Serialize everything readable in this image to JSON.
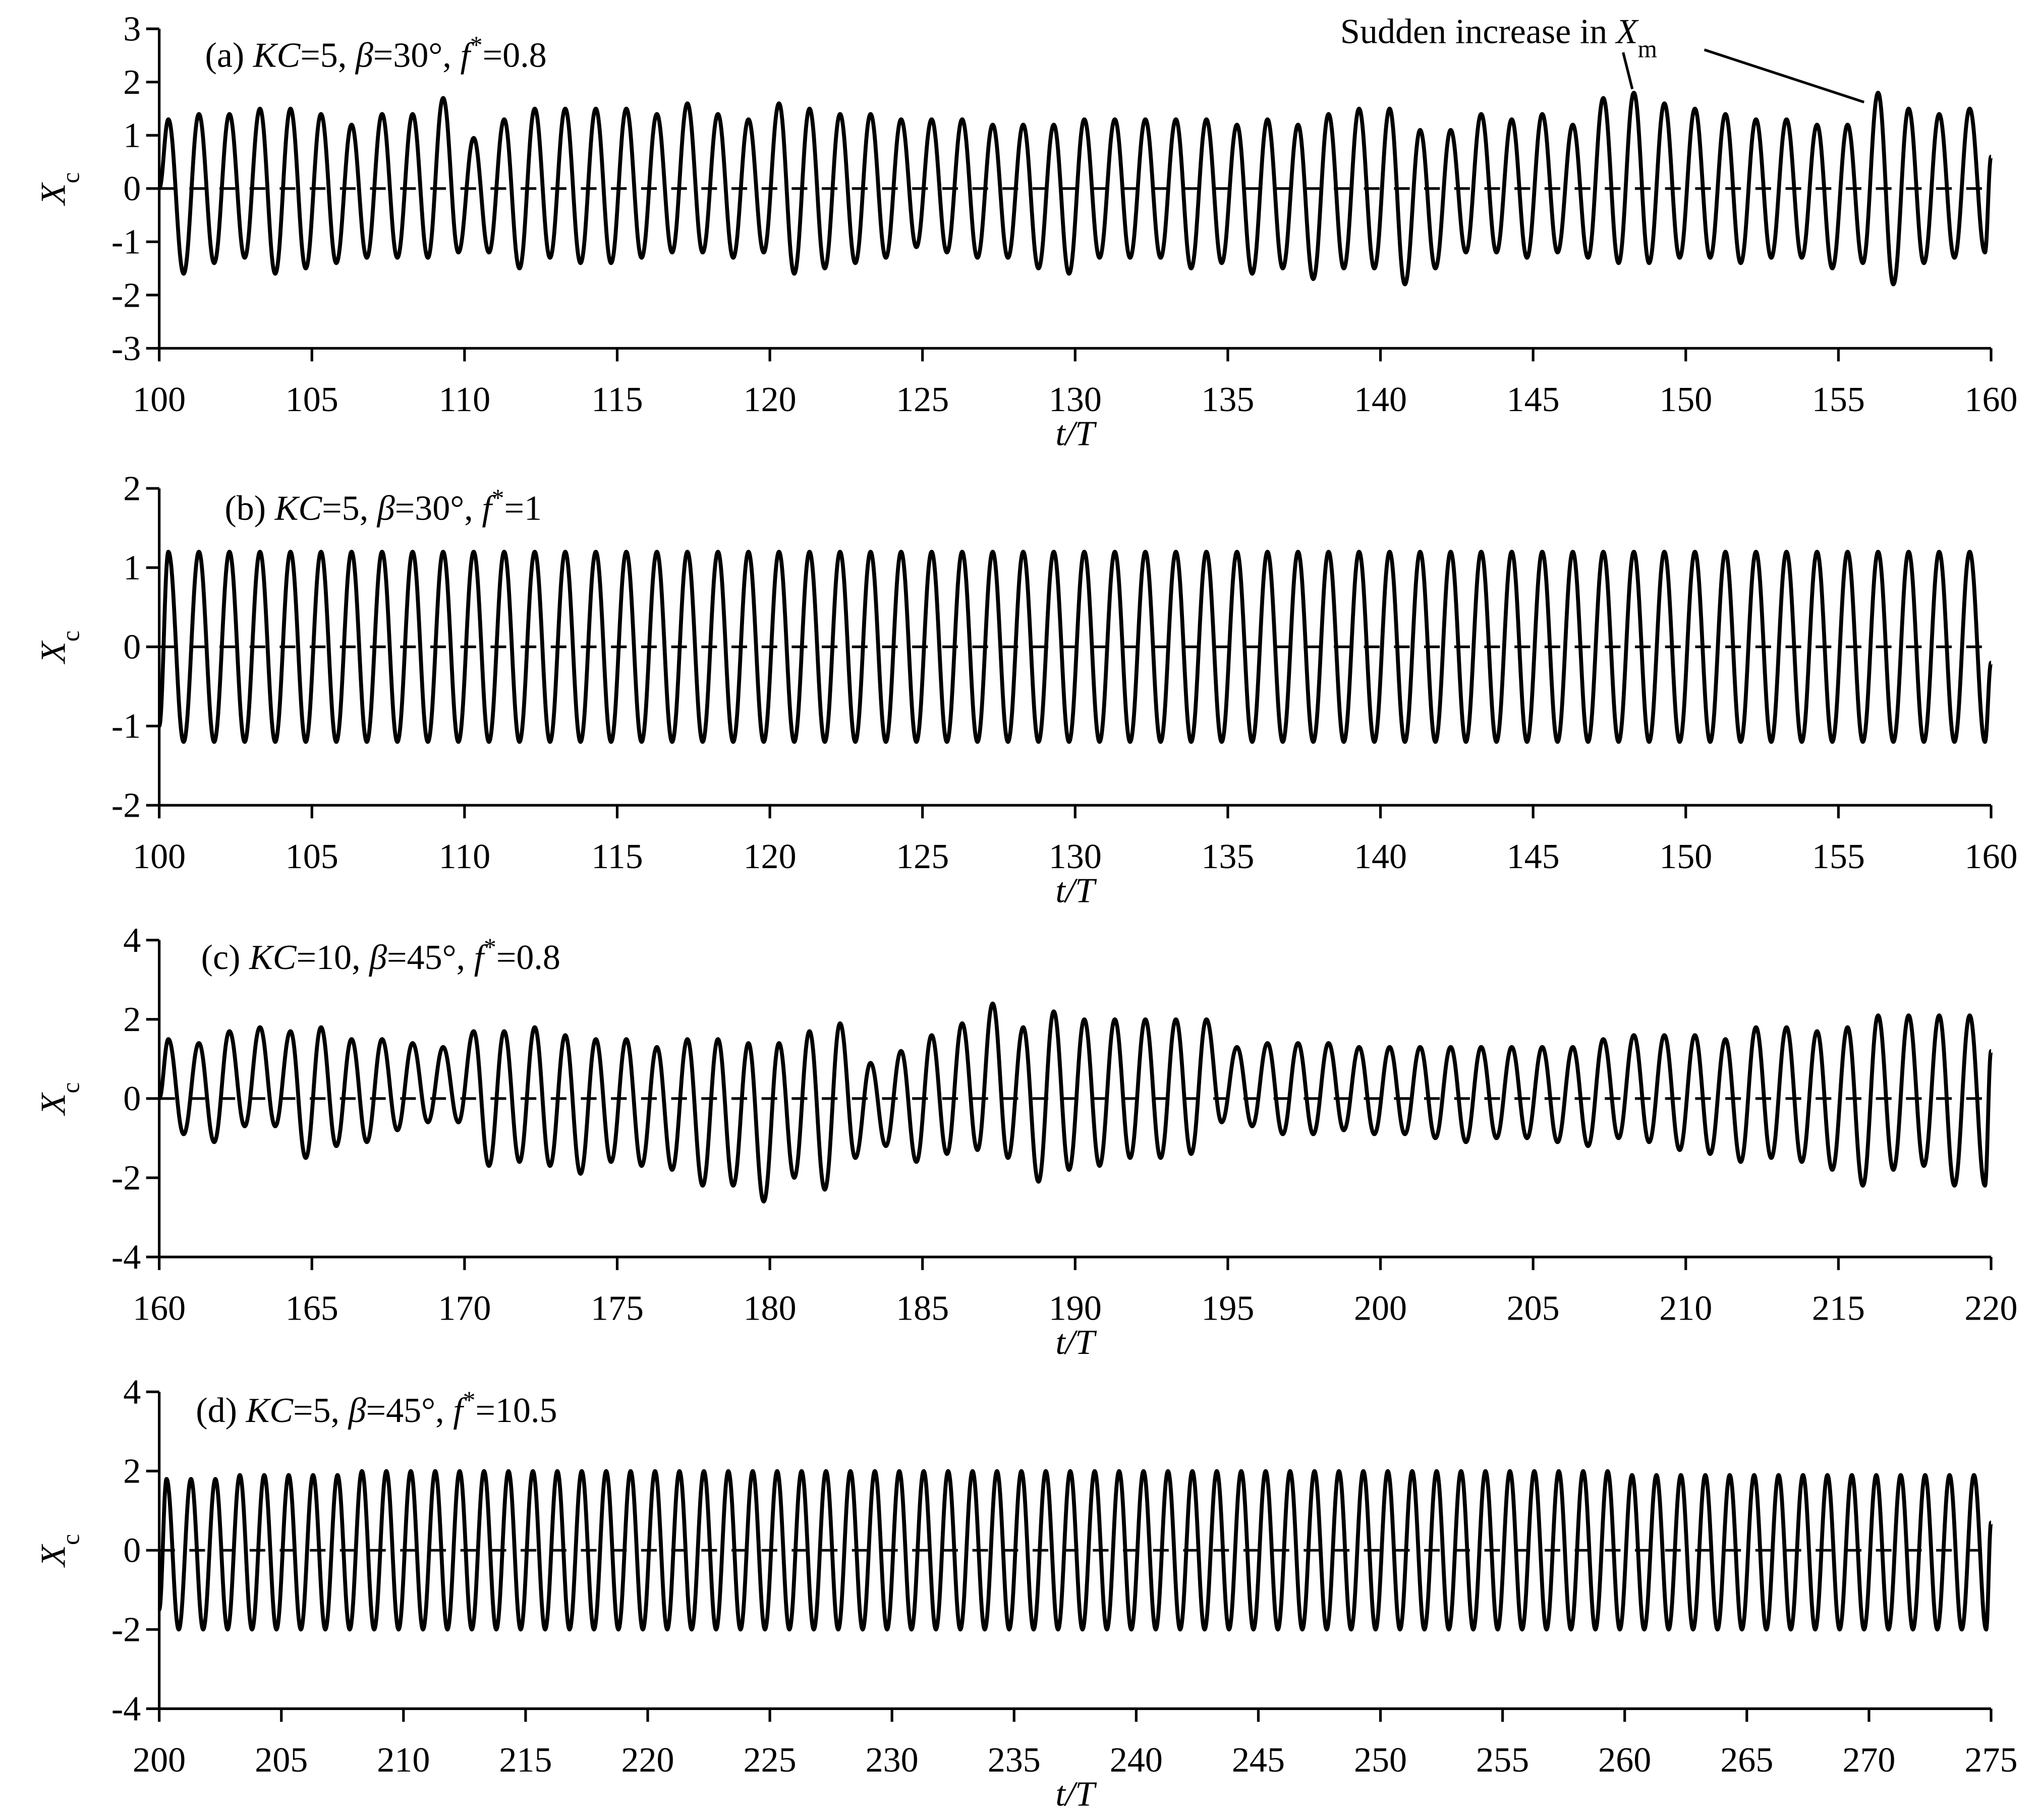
{
  "chart_data": [
    {
      "type": "line",
      "title": [
        "(a) ",
        "KC",
        "=5, ",
        "β",
        "=30°, ",
        "f",
        "*",
        "=0.8"
      ],
      "annotation": [
        "Sudden increase in ",
        "X",
        "m"
      ],
      "ylabel": [
        "X",
        "c"
      ],
      "xlabel": "t/T",
      "x": [
        100,
        100.3,
        100.8,
        101.3,
        101.8,
        102.3,
        102.8,
        103.3,
        103.8,
        104.3,
        104.8,
        105.3,
        105.8,
        106.3,
        106.8,
        107.3,
        107.8,
        108.3,
        108.8,
        109.3,
        109.8,
        110.3,
        110.8,
        111.3,
        111.8,
        112.3,
        112.8,
        113.3,
        113.8,
        114.3,
        114.8,
        115.3,
        115.8,
        116.3,
        116.8,
        117.3,
        117.8,
        118.3,
        118.8,
        119.3,
        119.8,
        120.3,
        120.8,
        121.3,
        121.8,
        122.3,
        122.8,
        123.3,
        123.8,
        124.3,
        124.8,
        125.3,
        125.8,
        126.3,
        126.8,
        127.3,
        127.8,
        128.3,
        128.8,
        129.3,
        129.8,
        130.3,
        130.8,
        131.3,
        131.8,
        132.3,
        132.8,
        133.3,
        133.8,
        134.3,
        134.8,
        135.3,
        135.8,
        136.3,
        136.8,
        137.3,
        137.8,
        138.3,
        138.8,
        139.3,
        139.8,
        140.3,
        140.8,
        141.3,
        141.8,
        142.3,
        142.8,
        143.3,
        143.8,
        144.3,
        144.8,
        145.3,
        145.8,
        146.3,
        146.8,
        147.3,
        147.8,
        148.3,
        148.8,
        149.3,
        149.8,
        150.3,
        150.8,
        151.3,
        151.8,
        152.3,
        152.8,
        153.3,
        153.8,
        154.3,
        154.8,
        155.3,
        155.8,
        156.3,
        156.8,
        157.3,
        157.8,
        158.3,
        158.8,
        159.3,
        159.8,
        160
      ],
      "series": [
        {
          "color": "#000000",
          "values": [
            0,
            1.3,
            -1.6,
            1.4,
            -1.4,
            1.4,
            -1.3,
            1.5,
            -1.6,
            1.5,
            -1.5,
            1.4,
            -1.4,
            1.2,
            -1.3,
            1.4,
            -1.3,
            1.4,
            -1.3,
            1.7,
            -1.2,
            0.95,
            -1.2,
            1.3,
            -1.5,
            1.5,
            -1.3,
            1.5,
            -1.4,
            1.5,
            -1.4,
            1.5,
            -1.3,
            1.4,
            -1.2,
            1.6,
            -1.2,
            1.4,
            -1.3,
            1.3,
            -1.2,
            1.6,
            -1.6,
            1.5,
            -1.5,
            1.4,
            -1.4,
            1.4,
            -1.3,
            1.3,
            -1.1,
            1.3,
            -1.2,
            1.3,
            -1.3,
            1.2,
            -1.3,
            1.2,
            -1.5,
            1.2,
            -1.6,
            1.3,
            -1.3,
            1.3,
            -1.3,
            1.3,
            -1.3,
            1.3,
            -1.5,
            1.3,
            -1.4,
            1.2,
            -1.6,
            1.3,
            -1.5,
            1.2,
            -1.7,
            1.4,
            -1.5,
            1.5,
            -1.5,
            1.5,
            -1.8,
            1.1,
            -1.5,
            1.1,
            -1.2,
            1.4,
            -1.2,
            1.3,
            -1.3,
            1.4,
            -1.2,
            1.2,
            -1.3,
            1.7,
            -1.4,
            1.8,
            -1.4,
            1.6,
            -1.3,
            1.5,
            -1.3,
            1.4,
            -1.4,
            1.3,
            -1.3,
            1.3,
            -1.3,
            1.2,
            -1.5,
            1.2,
            -1.4,
            1.8,
            -1.8,
            1.5,
            -1.4,
            1.4,
            -1.3,
            1.5,
            -1.2,
            0.6
          ]
        }
      ],
      "xlim": [
        100,
        160
      ],
      "ylim": [
        -3,
        3
      ],
      "xticks": [
        100,
        105,
        110,
        115,
        120,
        125,
        130,
        135,
        140,
        145,
        150,
        155,
        160
      ],
      "yticks": [
        -3,
        -2,
        -1,
        0,
        1,
        2,
        3
      ]
    },
    {
      "type": "line",
      "title": [
        "(b) ",
        "KC",
        "=5, ",
        "β",
        "=30°, ",
        "f",
        "*",
        "=1"
      ],
      "ylabel": [
        "X",
        "c"
      ],
      "xlabel": "t/T",
      "x": [
        100,
        100.3,
        100.8,
        101.3,
        101.8,
        102.3,
        102.8,
        103.3,
        103.8,
        104.3,
        104.8,
        105.3,
        105.8,
        106.3,
        106.8,
        107.3,
        107.8,
        108.3,
        108.8,
        109.3,
        109.8,
        110.3,
        110.8,
        111.3,
        111.8,
        112.3,
        112.8,
        113.3,
        113.8,
        114.3,
        114.8,
        115.3,
        115.8,
        116.3,
        116.8,
        117.3,
        117.8,
        118.3,
        118.8,
        119.3,
        119.8,
        120.3,
        120.8,
        121.3,
        121.8,
        122.3,
        122.8,
        123.3,
        123.8,
        124.3,
        124.8,
        125.3,
        125.8,
        126.3,
        126.8,
        127.3,
        127.8,
        128.3,
        128.8,
        129.3,
        129.8,
        130.3,
        130.8,
        131.3,
        131.8,
        132.3,
        132.8,
        133.3,
        133.8,
        134.3,
        134.8,
        135.3,
        135.8,
        136.3,
        136.8,
        137.3,
        137.8,
        138.3,
        138.8,
        139.3,
        139.8,
        140.3,
        140.8,
        141.3,
        141.8,
        142.3,
        142.8,
        143.3,
        143.8,
        144.3,
        144.8,
        145.3,
        145.8,
        146.3,
        146.8,
        147.3,
        147.8,
        148.3,
        148.8,
        149.3,
        149.8,
        150.3,
        150.8,
        151.3,
        151.8,
        152.3,
        152.8,
        153.3,
        153.8,
        154.3,
        154.8,
        155.3,
        155.8,
        156.3,
        156.8,
        157.3,
        157.8,
        158.3,
        158.8,
        159.3,
        159.8,
        160
      ],
      "series": [
        {
          "color": "#000000",
          "values": [
            -1,
            1.2,
            -1.2,
            1.2,
            -1.2,
            1.2,
            -1.2,
            1.2,
            -1.2,
            1.2,
            -1.2,
            1.2,
            -1.2,
            1.2,
            -1.2,
            1.2,
            -1.2,
            1.2,
            -1.2,
            1.2,
            -1.2,
            1.2,
            -1.2,
            1.2,
            -1.2,
            1.2,
            -1.2,
            1.2,
            -1.2,
            1.2,
            -1.2,
            1.2,
            -1.2,
            1.2,
            -1.2,
            1.2,
            -1.2,
            1.2,
            -1.2,
            1.2,
            -1.2,
            1.2,
            -1.2,
            1.2,
            -1.2,
            1.2,
            -1.2,
            1.2,
            -1.2,
            1.2,
            -1.2,
            1.2,
            -1.2,
            1.2,
            -1.2,
            1.2,
            -1.2,
            1.2,
            -1.2,
            1.2,
            -1.2,
            1.2,
            -1.2,
            1.2,
            -1.2,
            1.2,
            -1.2,
            1.2,
            -1.2,
            1.2,
            -1.2,
            1.2,
            -1.2,
            1.2,
            -1.2,
            1.2,
            -1.2,
            1.2,
            -1.2,
            1.2,
            -1.2,
            1.2,
            -1.2,
            1.2,
            -1.2,
            1.2,
            -1.2,
            1.2,
            -1.2,
            1.2,
            -1.2,
            1.2,
            -1.2,
            1.2,
            -1.2,
            1.2,
            -1.2,
            1.2,
            -1.2,
            1.2,
            -1.2,
            1.2,
            -1.2,
            1.2,
            -1.2,
            1.2,
            -1.2,
            1.2,
            -1.2,
            1.2,
            -1.2,
            1.2,
            -1.2,
            1.2,
            -1.2,
            1.2,
            -1.2,
            1.2,
            -1.2,
            1.2,
            -1.2,
            -0.2
          ]
        }
      ],
      "xlim": [
        100,
        160
      ],
      "ylim": [
        -2,
        2
      ],
      "xticks": [
        100,
        105,
        110,
        115,
        120,
        125,
        130,
        135,
        140,
        145,
        150,
        155,
        160
      ],
      "yticks": [
        -2,
        -1,
        0,
        1,
        2
      ]
    },
    {
      "type": "line",
      "title": [
        "(c) ",
        "KC",
        "=10, ",
        "β",
        "=45°, ",
        "f",
        "*",
        "=0.8"
      ],
      "ylabel": [
        "X",
        "c"
      ],
      "xlabel": "t/T",
      "x": [
        160,
        160.3,
        160.8,
        161.3,
        161.8,
        162.3,
        162.8,
        163.3,
        163.8,
        164.3,
        164.8,
        165.3,
        165.8,
        166.3,
        166.8,
        167.3,
        167.8,
        168.3,
        168.8,
        169.3,
        169.8,
        170.3,
        170.8,
        171.3,
        171.8,
        172.3,
        172.8,
        173.3,
        173.8,
        174.3,
        174.8,
        175.3,
        175.8,
        176.3,
        176.8,
        177.3,
        177.8,
        178.3,
        178.8,
        179.3,
        179.8,
        180.3,
        180.8,
        181.3,
        181.8,
        182.3,
        182.8,
        183.3,
        183.8,
        184.3,
        184.8,
        185.3,
        185.8,
        186.3,
        186.8,
        187.3,
        187.8,
        188.3,
        188.8,
        189.3,
        189.8,
        190.3,
        190.8,
        191.3,
        191.8,
        192.3,
        192.8,
        193.3,
        193.8,
        194.3,
        194.8,
        195.3,
        195.8,
        196.3,
        196.8,
        197.3,
        197.8,
        198.3,
        198.8,
        199.3,
        199.8,
        200.3,
        200.8,
        201.3,
        201.8,
        202.3,
        202.8,
        203.3,
        203.8,
        204.3,
        204.8,
        205.3,
        205.8,
        206.3,
        206.8,
        207.3,
        207.8,
        208.3,
        208.8,
        209.3,
        209.8,
        210.3,
        210.8,
        211.3,
        211.8,
        212.3,
        212.8,
        213.3,
        213.8,
        214.3,
        214.8,
        215.3,
        215.8,
        216.3,
        216.8,
        217.3,
        217.8,
        218.3,
        218.8,
        219.3,
        219.8,
        220
      ],
      "series": [
        {
          "color": "#000000",
          "values": [
            0,
            1.5,
            -0.9,
            1.4,
            -1.1,
            1.7,
            -0.7,
            1.8,
            -0.7,
            1.7,
            -1.5,
            1.8,
            -1.2,
            1.5,
            -1.1,
            1.5,
            -0.8,
            1.4,
            -0.6,
            1.3,
            -0.6,
            1.7,
            -1.7,
            1.7,
            -1.6,
            1.8,
            -1.7,
            1.6,
            -1.9,
            1.5,
            -1.6,
            1.5,
            -1.7,
            1.3,
            -1.8,
            1.5,
            -2.2,
            1.5,
            -2.2,
            1.4,
            -2.6,
            1.4,
            -2.0,
            1.7,
            -2.3,
            1.9,
            -1.5,
            0.9,
            -1.2,
            1.2,
            -1.6,
            1.6,
            -1.4,
            1.9,
            -1.3,
            2.4,
            -1.5,
            1.8,
            -2.1,
            2.2,
            -1.8,
            2.0,
            -1.7,
            2.0,
            -1.5,
            2.0,
            -1.5,
            2.0,
            -1.4,
            2.0,
            -0.6,
            1.3,
            -0.7,
            1.4,
            -0.9,
            1.4,
            -0.9,
            1.4,
            -0.8,
            1.3,
            -0.9,
            1.3,
            -0.9,
            1.3,
            -1.0,
            1.3,
            -1.1,
            1.3,
            -1.0,
            1.3,
            -1.0,
            1.3,
            -1.1,
            1.3,
            -1.2,
            1.5,
            -1.0,
            1.6,
            -1.1,
            1.6,
            -1.3,
            1.6,
            -1.4,
            1.5,
            -1.6,
            1.8,
            -1.5,
            1.8,
            -1.6,
            1.7,
            -1.8,
            1.8,
            -2.2,
            2.1,
            -1.8,
            2.1,
            -1.7,
            2.1,
            -2.2,
            2.1,
            -2.2,
            1.2
          ]
        }
      ],
      "xlim": [
        160,
        220
      ],
      "ylim": [
        -4,
        4
      ],
      "xticks": [
        160,
        165,
        170,
        175,
        180,
        185,
        190,
        195,
        200,
        205,
        210,
        215,
        220
      ],
      "yticks": [
        -4,
        -2,
        0,
        2,
        4
      ]
    },
    {
      "type": "line",
      "title": [
        "(d) ",
        "KC",
        "=5, ",
        "β",
        "=45°, ",
        "f",
        "*",
        "=10.5"
      ],
      "ylabel": [
        "X",
        "c"
      ],
      "xlabel": "t/T",
      "x": [
        200,
        200.3,
        200.8,
        201.3,
        201.8,
        202.3,
        202.8,
        203.3,
        203.8,
        204.3,
        204.8,
        205.3,
        205.8,
        206.3,
        206.8,
        207.3,
        207.8,
        208.3,
        208.8,
        209.3,
        209.8,
        210.3,
        210.8,
        211.3,
        211.8,
        212.3,
        212.8,
        213.3,
        213.8,
        214.3,
        214.8,
        215.3,
        215.8,
        216.3,
        216.8,
        217.3,
        217.8,
        218.3,
        218.8,
        219.3,
        219.8,
        220.3,
        220.8,
        221.3,
        221.8,
        222.3,
        222.8,
        223.3,
        223.8,
        224.3,
        224.8,
        225.3,
        225.8,
        226.3,
        226.8,
        227.3,
        227.8,
        228.3,
        228.8,
        229.3,
        229.8,
        230.3,
        230.8,
        231.3,
        231.8,
        232.3,
        232.8,
        233.3,
        233.8,
        234.3,
        234.8,
        235.3,
        235.8,
        236.3,
        236.8,
        237.3,
        237.8,
        238.3,
        238.8,
        239.3,
        239.8,
        240.3,
        240.8,
        241.3,
        241.8,
        242.3,
        242.8,
        243.3,
        243.8,
        244.3,
        244.8,
        245.3,
        245.8,
        246.3,
        246.8,
        247.3,
        247.8,
        248.3,
        248.8,
        249.3,
        249.8,
        250.3,
        250.8,
        251.3,
        251.8,
        252.3,
        252.8,
        253.3,
        253.8,
        254.3,
        254.8,
        255.3,
        255.8,
        256.3,
        256.8,
        257.3,
        257.8,
        258.3,
        258.8,
        259.3,
        259.8,
        260.3,
        260.8,
        261.3,
        261.8,
        262.3,
        262.8,
        263.3,
        263.8,
        264.3,
        264.8,
        265.3,
        265.8,
        266.3,
        266.8,
        267.3,
        267.8,
        268.3,
        268.8,
        269.3,
        269.8,
        270.3,
        270.8,
        271.3,
        271.8,
        272.3,
        272.8,
        273.3,
        273.8,
        274.3,
        274.8,
        275
      ],
      "series": [
        {
          "color": "#000000",
          "values": [
            -1.5,
            1.8,
            -2,
            1.8,
            -2,
            1.8,
            -2,
            1.9,
            -2,
            1.9,
            -2,
            1.9,
            -2,
            1.9,
            -2,
            1.9,
            -2,
            2,
            -2,
            2,
            -2,
            2,
            -2,
            2,
            -2,
            2,
            -2,
            2,
            -2,
            2,
            -2,
            2,
            -2,
            2,
            -2,
            2,
            -2,
            2,
            -2,
            2,
            -2,
            2,
            -2,
            2,
            -2,
            2,
            -2,
            2,
            -2,
            2,
            -2,
            2,
            -2,
            2,
            -2,
            2,
            -2,
            2,
            -2,
            2,
            -2,
            2,
            -2,
            2,
            -2,
            2,
            -2,
            2,
            -2,
            2,
            -2,
            2,
            -2,
            2,
            -2,
            2,
            -2,
            2,
            -2,
            2,
            -2,
            2,
            -2,
            2,
            -2,
            2,
            -2,
            2,
            -2,
            2,
            -2,
            2,
            -2,
            2,
            -2,
            2,
            -2,
            2,
            -2,
            2,
            -2,
            2,
            -2,
            2,
            -2,
            2,
            -2,
            2,
            -2,
            2,
            -2,
            2,
            -2,
            2,
            -2,
            2,
            -2,
            2,
            -2,
            2,
            -2,
            1.9,
            -2,
            1.9,
            -2,
            1.9,
            -2,
            1.9,
            -2,
            1.9,
            -2,
            1.9,
            -2,
            1.9,
            -2,
            1.9,
            -2,
            1.9,
            -2,
            1.9,
            -2,
            1.9,
            -2,
            1.9,
            -2,
            1.9,
            -2,
            1.9,
            -2,
            1.9,
            -2,
            0.7
          ]
        }
      ],
      "xlim": [
        200,
        275
      ],
      "ylim": [
        -4,
        4
      ],
      "xticks": [
        200,
        205,
        210,
        215,
        220,
        225,
        230,
        235,
        240,
        245,
        250,
        255,
        260,
        265,
        270,
        275
      ],
      "yticks": [
        -4,
        -2,
        0,
        2,
        4
      ]
    }
  ]
}
